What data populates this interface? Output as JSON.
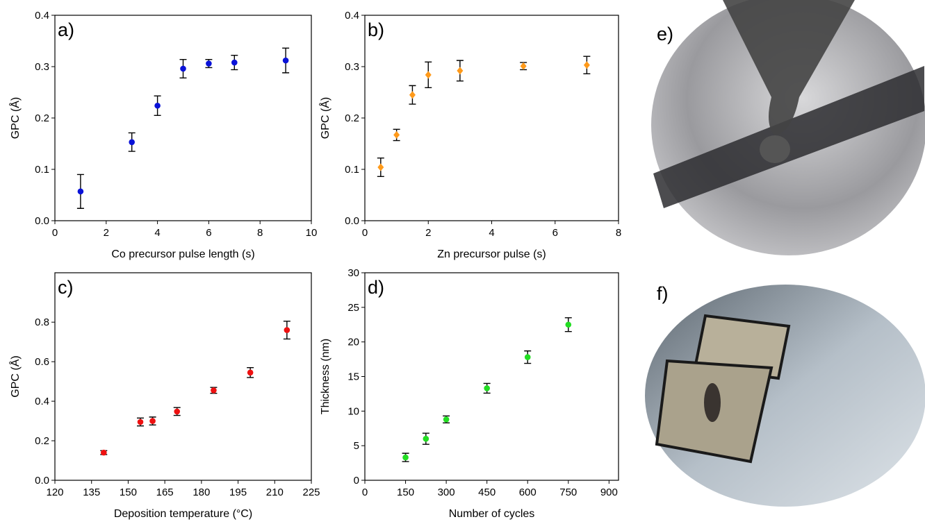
{
  "chart_data": [
    {
      "type": "scatter",
      "label": "a)",
      "x_label": "Co precursor pulse length (s)",
      "y_label": "GPC (Å)",
      "color": "#0a12d8",
      "marker": "circle",
      "x": [
        1,
        3,
        4,
        5,
        6,
        7,
        9
      ],
      "values": [
        0.057,
        0.153,
        0.224,
        0.296,
        0.306,
        0.308,
        0.312
      ],
      "errors": [
        0.033,
        0.018,
        0.019,
        0.018,
        0.008,
        0.014,
        0.024
      ],
      "xlim": [
        0,
        10
      ],
      "ylim": [
        0,
        0.4
      ],
      "xticks": [
        0,
        2,
        4,
        6,
        8,
        10
      ],
      "yticks": [
        {
          "value": 0,
          "label": "0.0"
        },
        0.1,
        0.2,
        0.3,
        0.4
      ]
    },
    {
      "type": "scatter",
      "label": "b)",
      "x_label": "Zn precursor pulse (s)",
      "y_label": "GPC (Å)",
      "color": "#ff9a1a",
      "marker": "diamond",
      "x": [
        0.5,
        1,
        1.5,
        2,
        3,
        5,
        7
      ],
      "values": [
        0.104,
        0.167,
        0.245,
        0.284,
        0.292,
        0.301,
        0.303
      ],
      "errors": [
        0.018,
        0.011,
        0.018,
        0.025,
        0.02,
        0.007,
        0.017
      ],
      "xlim": [
        0,
        8
      ],
      "ylim": [
        0,
        0.4
      ],
      "xticks": [
        0,
        2,
        4,
        6,
        8
      ],
      "yticks": [
        {
          "value": 0,
          "label": "0.0"
        },
        0.1,
        0.2,
        0.3,
        0.4
      ]
    },
    {
      "type": "scatter",
      "label": "c)",
      "x_label": "Deposition temperature (°C)",
      "y_label": "GPC (Å)",
      "color": "#ee1111",
      "marker": "circle",
      "x": [
        140,
        155,
        160,
        170,
        185,
        200,
        215
      ],
      "values": [
        0.14,
        0.295,
        0.3,
        0.348,
        0.455,
        0.545,
        0.76
      ],
      "errors": [
        0.01,
        0.02,
        0.02,
        0.02,
        0.015,
        0.025,
        0.045
      ],
      "xlim": [
        120,
        225
      ],
      "ylim": [
        0,
        1.05
      ],
      "xticks": [
        120,
        135,
        150,
        165,
        180,
        195,
        210,
        225
      ],
      "yticks": [
        {
          "value": 0,
          "label": "0.0"
        },
        0.2,
        0.4,
        0.6,
        0.8
      ]
    },
    {
      "type": "scatter",
      "label": "d)",
      "x_label": "Number of cycles",
      "y_label": "Thickness (nm)",
      "color": "#22dd22",
      "marker": "circle",
      "x": [
        150,
        225,
        300,
        450,
        600,
        750
      ],
      "values": [
        3.3,
        6.0,
        8.8,
        13.3,
        17.8,
        22.5
      ],
      "errors": [
        0.6,
        0.8,
        0.5,
        0.7,
        0.9,
        1.0
      ],
      "xlim": [
        0,
        935
      ],
      "ylim": [
        0,
        30
      ],
      "xticks": [
        0,
        150,
        300,
        450,
        600,
        750,
        900
      ],
      "yticks": [
        0,
        5,
        10,
        15,
        20,
        25,
        30
      ]
    }
  ],
  "photos": [
    {
      "label": "e)"
    },
    {
      "label": "f)"
    }
  ]
}
